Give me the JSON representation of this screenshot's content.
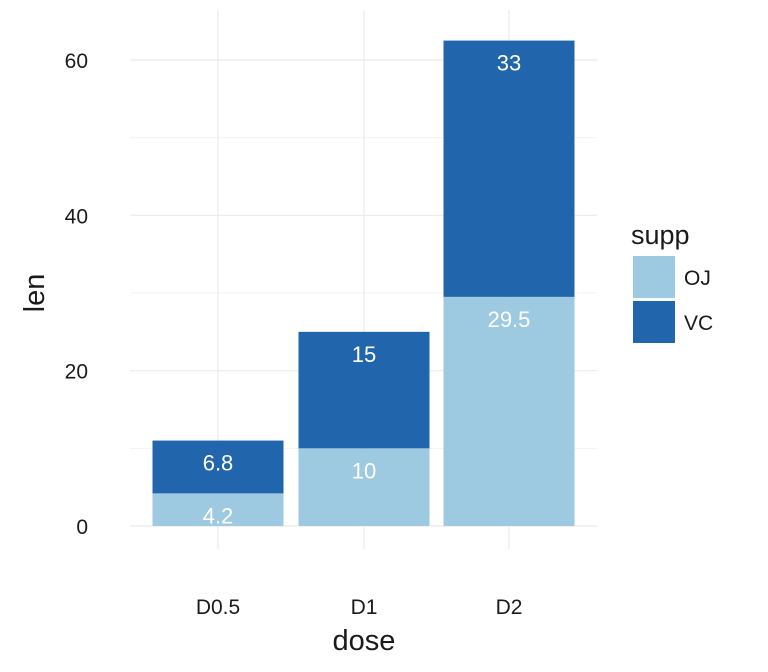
{
  "chart_data": {
    "type": "bar",
    "stacked": true,
    "categories": [
      "D0.5",
      "D1",
      "D2"
    ],
    "series": [
      {
        "name": "OJ",
        "values": [
          4.2,
          10,
          29.5
        ],
        "color": "#9ecae1",
        "labels": [
          "4.2",
          "10",
          "29.5"
        ]
      },
      {
        "name": "VC",
        "values": [
          6.8,
          15,
          33
        ],
        "color": "#2166ac",
        "labels": [
          "6.8",
          "15",
          "33"
        ]
      }
    ],
    "xlabel": "dose",
    "ylabel": "len",
    "ylim": [
      0,
      62.5
    ],
    "yticks": [
      0,
      20,
      40,
      60
    ],
    "yticks_minor": [
      10,
      30,
      50
    ],
    "grid": true,
    "legend": {
      "title": "supp",
      "position": "right"
    },
    "label_color": "#ffffff",
    "grid_color": "#ebebeb"
  }
}
